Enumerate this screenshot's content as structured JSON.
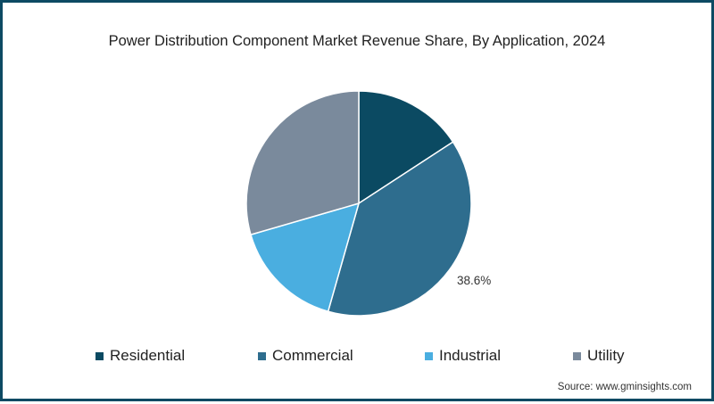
{
  "chart_data": {
    "type": "pie",
    "title": "Power Distribution Component Market Revenue Share, By Application, 2024",
    "categories": [
      "Residential",
      "Commercial",
      "Industrial",
      "Utility"
    ],
    "values": [
      15.8,
      38.6,
      16.1,
      29.5
    ],
    "colors": [
      "#0b4a62",
      "#2e6d8e",
      "#4aaee0",
      "#7a8a9c"
    ],
    "data_labels": [
      {
        "category": "Commercial",
        "text": "38.6%"
      }
    ],
    "legend_position": "bottom",
    "start_angle": "top, clockwise"
  },
  "title": "Power Distribution Component Market Revenue Share, By Application, 2024",
  "legend": {
    "items": [
      {
        "label": "Residential",
        "color": "#0b4a62"
      },
      {
        "label": "Commercial",
        "color": "#2e6d8e"
      },
      {
        "label": "Industrial",
        "color": "#4aaee0"
      },
      {
        "label": "Utility",
        "color": "#7a8a9c"
      }
    ]
  },
  "labels": {
    "commercial": "38.6%"
  },
  "source": "Source: www.gminsights.com",
  "frame_color": "#0d4a63"
}
